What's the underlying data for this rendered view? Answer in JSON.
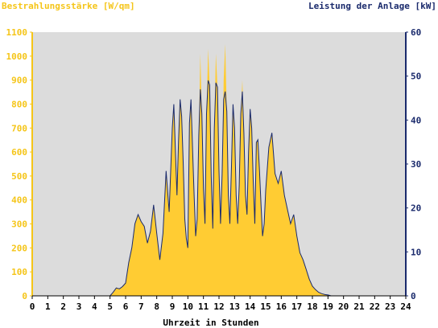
{
  "chart_data": {
    "type": "area",
    "title_left": "Bestrahlungsstärke [W/qm]",
    "title_right": "Leistung der Anlage [kW]",
    "xlabel": "Uhrzeit in Stunden",
    "xlim": [
      0,
      24
    ],
    "x_ticks": [
      "0",
      "1",
      "2",
      "3",
      "4",
      "5",
      "6",
      "7",
      "8",
      "9",
      "10",
      "11",
      "12",
      "13",
      "14",
      "15",
      "16",
      "17",
      "18",
      "19",
      "20",
      "21",
      "22",
      "23",
      "24"
    ],
    "ylim_left": [
      0,
      1100
    ],
    "y_ticks_left": [
      "0",
      "100",
      "200",
      "300",
      "400",
      "500",
      "600",
      "700",
      "800",
      "900",
      "1000",
      "1100"
    ],
    "ylim_right": [
      0,
      60
    ],
    "y_ticks_right": [
      "0",
      "10",
      "20",
      "30",
      "40",
      "50",
      "60"
    ],
    "grid": false,
    "colors": {
      "plot_background": "#dcdcdc",
      "irradiance_fill": "#ffcc33",
      "power_line": "#1a2a6c",
      "left_axis": "#f5c518",
      "right_axis": "#1a2a6c"
    },
    "series": [
      {
        "axis": "left",
        "style": "area",
        "x": [
          0,
          5,
          5.2,
          5.4,
          5.6,
          5.8,
          6,
          6.2,
          6.4,
          6.6,
          6.8,
          7,
          7.2,
          7.4,
          7.6,
          7.8,
          8,
          8.2,
          8.4,
          8.6,
          8.8,
          9,
          9.1,
          9.2,
          9.3,
          9.4,
          9.5,
          9.6,
          9.7,
          9.8,
          9.9,
          10,
          10.1,
          10.2,
          10.3,
          10.4,
          10.5,
          10.6,
          10.7,
          10.8,
          10.9,
          11,
          11.1,
          11.2,
          11.3,
          11.4,
          11.5,
          11.6,
          11.7,
          11.8,
          11.9,
          12,
          12.1,
          12.2,
          12.3,
          12.4,
          12.5,
          12.6,
          12.7,
          12.8,
          12.9,
          13,
          13.1,
          13.2,
          13.3,
          13.4,
          13.5,
          13.6,
          13.7,
          13.8,
          13.9,
          14,
          14.1,
          14.2,
          14.3,
          14.4,
          14.5,
          14.6,
          14.7,
          14.8,
          14.9,
          15,
          15.2,
          15.4,
          15.6,
          15.8,
          16,
          16.2,
          16.4,
          16.6,
          16.8,
          17,
          17.2,
          17.4,
          17.6,
          17.8,
          18,
          18.2,
          18.4,
          18.6,
          18.8,
          19,
          19.2,
          19.4,
          20,
          24
        ],
        "values": [
          0,
          0,
          15,
          35,
          30,
          40,
          55,
          140,
          200,
          300,
          340,
          310,
          290,
          220,
          270,
          380,
          260,
          150,
          260,
          520,
          350,
          700,
          800,
          600,
          420,
          640,
          820,
          750,
          560,
          320,
          240,
          200,
          720,
          820,
          620,
          420,
          250,
          320,
          670,
          1010,
          760,
          450,
          300,
          760,
          1030,
          880,
          500,
          280,
          700,
          1010,
          870,
          520,
          300,
          510,
          900,
          1050,
          770,
          420,
          300,
          540,
          800,
          700,
          420,
          300,
          460,
          760,
          900,
          680,
          420,
          340,
          600,
          780,
          700,
          480,
          300,
          640,
          650,
          520,
          380,
          250,
          300,
          440,
          620,
          680,
          510,
          470,
          520,
          420,
          360,
          300,
          340,
          250,
          180,
          150,
          110,
          70,
          40,
          25,
          15,
          10,
          5,
          3,
          0,
          0,
          0,
          0
        ]
      },
      {
        "axis": "right",
        "style": "line",
        "x": [
          0,
          5,
          5.2,
          5.4,
          5.6,
          5.8,
          6,
          6.2,
          6.4,
          6.6,
          6.8,
          7,
          7.2,
          7.4,
          7.6,
          7.8,
          8,
          8.2,
          8.4,
          8.6,
          8.8,
          9,
          9.1,
          9.2,
          9.3,
          9.4,
          9.5,
          9.6,
          9.7,
          9.8,
          9.9,
          10,
          10.1,
          10.2,
          10.3,
          10.4,
          10.5,
          10.6,
          10.7,
          10.8,
          10.9,
          11,
          11.1,
          11.2,
          11.3,
          11.4,
          11.5,
          11.6,
          11.7,
          11.8,
          11.9,
          12,
          12.1,
          12.2,
          12.3,
          12.4,
          12.5,
          12.6,
          12.7,
          12.8,
          12.9,
          13,
          13.1,
          13.2,
          13.3,
          13.4,
          13.5,
          13.6,
          13.7,
          13.8,
          13.9,
          14,
          14.1,
          14.2,
          14.3,
          14.4,
          14.5,
          14.6,
          14.7,
          14.8,
          14.9,
          15,
          15.2,
          15.4,
          15.6,
          15.8,
          16,
          16.2,
          16.4,
          16.6,
          16.8,
          17,
          17.2,
          17.4,
          17.6,
          17.8,
          18,
          18.2,
          18.4,
          18.6,
          18.8,
          19,
          19.2,
          19.4,
          20,
          24
        ],
        "values": [
          0,
          0,
          0.8,
          1.8,
          1.6,
          2.1,
          2.9,
          7.6,
          10.9,
          16.4,
          18.5,
          16.9,
          15.8,
          12,
          14.7,
          20.7,
          14.2,
          8.2,
          14.2,
          28.4,
          19.1,
          38.2,
          43.6,
          32.7,
          22.9,
          34.9,
          44.7,
          40.9,
          30.5,
          17.5,
          13.1,
          10.9,
          39.3,
          44.7,
          33.8,
          22.9,
          13.6,
          17.5,
          36.5,
          47,
          41.5,
          24.5,
          16.4,
          41.5,
          49,
          48,
          27.3,
          15.3,
          38.2,
          48.5,
          47.5,
          28.4,
          16.4,
          27.8,
          44.7,
          46.5,
          42,
          22.9,
          16.4,
          29.5,
          43.6,
          38.2,
          22.9,
          16.4,
          25.1,
          41.5,
          46.5,
          37.1,
          22.9,
          18.5,
          32.7,
          42.5,
          38.2,
          26.2,
          16.4,
          34.9,
          35.5,
          28.4,
          20.7,
          13.6,
          16.4,
          24,
          33.8,
          37.1,
          27.8,
          25.6,
          28.4,
          22.9,
          19.6,
          16.4,
          18.5,
          13.6,
          9.8,
          8.2,
          6,
          3.8,
          2.2,
          1.4,
          0.8,
          0.5,
          0.3,
          0.2,
          0,
          0,
          0,
          0
        ]
      }
    ]
  }
}
